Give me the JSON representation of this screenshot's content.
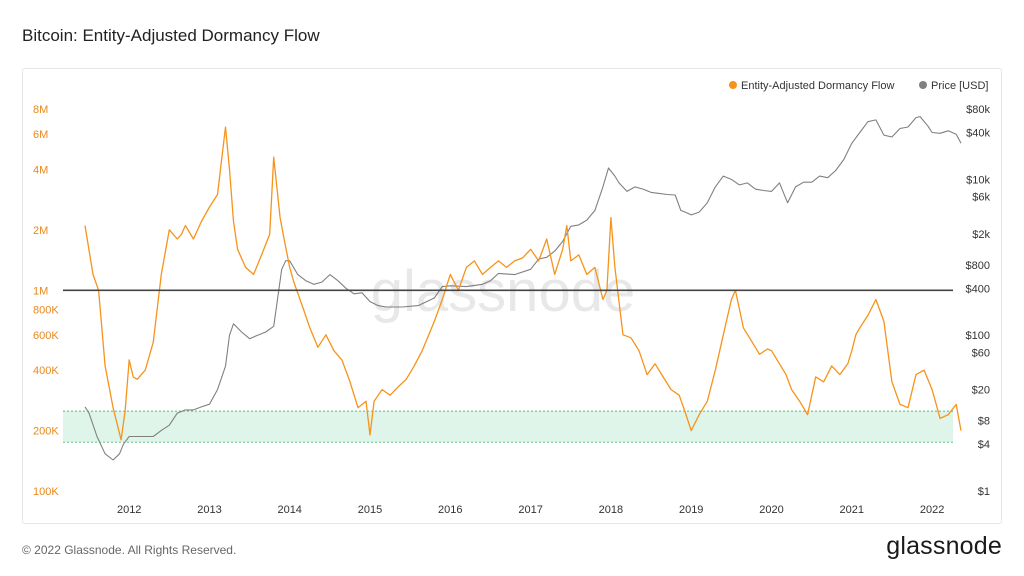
{
  "title": "Bitcoin: Entity-Adjusted Dormancy Flow",
  "footer": "© 2022 Glassnode. All Rights Reserved.",
  "brand": "glassnode",
  "watermark": "glassnode",
  "colors": {
    "dormancy": "#f7931a",
    "price": "#808080",
    "band_fill": "#dff5ea",
    "band_line": "#47c27f",
    "reference_line": "#444444",
    "left_axis_text": "#e8891c",
    "right_axis_text": "#333333"
  },
  "chart_data": {
    "type": "line",
    "legend": {
      "position": "top-right",
      "entries": [
        "Entity-Adjusted Dormancy Flow",
        "Price [USD]"
      ]
    },
    "x_ticks": [
      "2012",
      "2013",
      "2014",
      "2015",
      "2016",
      "2017",
      "2018",
      "2019",
      "2020",
      "2021",
      "2022"
    ],
    "x_range": [
      2011.45,
      2022.36
    ],
    "y_left": {
      "scale": "log",
      "range": [
        100000,
        8000000
      ],
      "ticks": [
        {
          "value": 100000,
          "label": "100K"
        },
        {
          "value": 200000,
          "label": "200K"
        },
        {
          "value": 400000,
          "label": "400K"
        },
        {
          "value": 600000,
          "label": "600K"
        },
        {
          "value": 800000,
          "label": "800K"
        },
        {
          "value": 1000000,
          "label": "1M"
        },
        {
          "value": 2000000,
          "label": "2M"
        },
        {
          "value": 4000000,
          "label": "4M"
        },
        {
          "value": 6000000,
          "label": "6M"
        },
        {
          "value": 8000000,
          "label": "8M"
        }
      ]
    },
    "y_right": {
      "scale": "log",
      "range": [
        1,
        80000
      ],
      "ticks": [
        {
          "value": 1,
          "label": "$1"
        },
        {
          "value": 4,
          "label": "$4"
        },
        {
          "value": 8,
          "label": "$8"
        },
        {
          "value": 20,
          "label": "$20"
        },
        {
          "value": 60,
          "label": "$60"
        },
        {
          "value": 100,
          "label": "$100"
        },
        {
          "value": 400,
          "label": "$400"
        },
        {
          "value": 800,
          "label": "$800"
        },
        {
          "value": 2000,
          "label": "$2k"
        },
        {
          "value": 6000,
          "label": "$6k"
        },
        {
          "value": 10000,
          "label": "$10k"
        },
        {
          "value": 40000,
          "label": "$40k"
        },
        {
          "value": 80000,
          "label": "$80k"
        }
      ]
    },
    "reference_line": 1000000,
    "band": [
      175000,
      250000
    ],
    "series": [
      {
        "name": "Entity-Adjusted Dormancy Flow",
        "axis": "left",
        "x": [
          2011.45,
          2011.55,
          2011.62,
          2011.7,
          2011.8,
          2011.9,
          2011.95,
          2012.0,
          2012.05,
          2012.1,
          2012.2,
          2012.3,
          2012.4,
          2012.5,
          2012.6,
          2012.65,
          2012.7,
          2012.8,
          2012.9,
          2013.0,
          2013.1,
          2013.2,
          2013.25,
          2013.3,
          2013.35,
          2013.45,
          2013.55,
          2013.65,
          2013.75,
          2013.8,
          2013.88,
          2013.93,
          2014.0,
          2014.05,
          2014.15,
          2014.25,
          2014.35,
          2014.45,
          2014.55,
          2014.65,
          2014.75,
          2014.85,
          2014.95,
          2015.0,
          2015.05,
          2015.15,
          2015.25,
          2015.35,
          2015.45,
          2015.55,
          2015.65,
          2015.8,
          2015.9,
          2016.0,
          2016.1,
          2016.2,
          2016.3,
          2016.4,
          2016.5,
          2016.6,
          2016.7,
          2016.8,
          2016.9,
          2017.0,
          2017.1,
          2017.2,
          2017.3,
          2017.4,
          2017.45,
          2017.5,
          2017.6,
          2017.7,
          2017.8,
          2017.9,
          2017.95,
          2018.0,
          2018.05,
          2018.15,
          2018.25,
          2018.35,
          2018.45,
          2018.55,
          2018.65,
          2018.75,
          2018.85,
          2018.92,
          2019.0,
          2019.1,
          2019.2,
          2019.3,
          2019.4,
          2019.5,
          2019.55,
          2019.65,
          2019.75,
          2019.85,
          2019.95,
          2020.0,
          2020.1,
          2020.18,
          2020.25,
          2020.35,
          2020.45,
          2020.55,
          2020.65,
          2020.75,
          2020.85,
          2020.95,
          2021.0,
          2021.05,
          2021.1,
          2021.2,
          2021.3,
          2021.4,
          2021.5,
          2021.6,
          2021.7,
          2021.8,
          2021.9,
          2022.0,
          2022.1,
          2022.2,
          2022.3,
          2022.36
        ],
        "y": [
          2100000,
          1200000,
          1000000,
          420000,
          260000,
          180000,
          250000,
          450000,
          370000,
          360000,
          400000,
          550000,
          1200000,
          2000000,
          1800000,
          1900000,
          2100000,
          1800000,
          2200000,
          2600000,
          3000000,
          6500000,
          4000000,
          2200000,
          1600000,
          1300000,
          1200000,
          1500000,
          1900000,
          4600000,
          2300000,
          1800000,
          1300000,
          1100000,
          850000,
          650000,
          520000,
          600000,
          500000,
          450000,
          350000,
          260000,
          280000,
          190000,
          280000,
          320000,
          300000,
          330000,
          360000,
          420000,
          500000,
          700000,
          900000,
          1200000,
          1000000,
          1300000,
          1400000,
          1200000,
          1300000,
          1400000,
          1300000,
          1400000,
          1450000,
          1600000,
          1400000,
          1800000,
          1200000,
          1600000,
          2100000,
          1400000,
          1500000,
          1200000,
          1300000,
          900000,
          1000000,
          2300000,
          1300000,
          600000,
          580000,
          500000,
          380000,
          430000,
          370000,
          320000,
          300000,
          250000,
          200000,
          240000,
          280000,
          400000,
          600000,
          900000,
          1000000,
          650000,
          560000,
          480000,
          510000,
          500000,
          430000,
          380000,
          320000,
          280000,
          240000,
          370000,
          350000,
          420000,
          380000,
          430000,
          500000,
          600000,
          650000,
          750000,
          900000,
          700000,
          350000,
          270000,
          260000,
          380000,
          400000,
          320000,
          230000,
          240000,
          270000,
          200000
        ],
        "style": {
          "color": "#f7931a",
          "stroke_width": 1.3
        }
      },
      {
        "name": "Price [USD]",
        "axis": "right",
        "x": [
          2011.45,
          2011.5,
          2011.6,
          2011.7,
          2011.8,
          2011.88,
          2011.93,
          2012.0,
          2012.1,
          2012.2,
          2012.3,
          2012.4,
          2012.5,
          2012.6,
          2012.7,
          2012.8,
          2012.9,
          2013.0,
          2013.1,
          2013.2,
          2013.25,
          2013.3,
          2013.4,
          2013.5,
          2013.6,
          2013.7,
          2013.8,
          2013.9,
          2013.95,
          2014.0,
          2014.1,
          2014.2,
          2014.3,
          2014.4,
          2014.5,
          2014.6,
          2014.7,
          2014.8,
          2014.9,
          2015.0,
          2015.1,
          2015.2,
          2015.4,
          2015.6,
          2015.8,
          2015.9,
          2016.0,
          2016.2,
          2016.4,
          2016.5,
          2016.6,
          2016.8,
          2017.0,
          2017.1,
          2017.2,
          2017.3,
          2017.4,
          2017.5,
          2017.6,
          2017.7,
          2017.8,
          2017.9,
          2017.97,
          2018.05,
          2018.1,
          2018.2,
          2018.3,
          2018.4,
          2018.5,
          2018.6,
          2018.7,
          2018.8,
          2018.87,
          2018.95,
          2019.0,
          2019.1,
          2019.2,
          2019.3,
          2019.4,
          2019.5,
          2019.6,
          2019.7,
          2019.8,
          2019.9,
          2020.0,
          2020.1,
          2020.2,
          2020.3,
          2020.4,
          2020.5,
          2020.6,
          2020.7,
          2020.8,
          2020.9,
          2021.0,
          2021.1,
          2021.2,
          2021.3,
          2021.4,
          2021.5,
          2021.6,
          2021.7,
          2021.8,
          2021.85,
          2021.95,
          2022.0,
          2022.1,
          2022.2,
          2022.3,
          2022.36
        ],
        "y": [
          12,
          10,
          5,
          3,
          2.5,
          3,
          4,
          5,
          5,
          5,
          5,
          6,
          7,
          10,
          11,
          11,
          12,
          13,
          20,
          40,
          100,
          140,
          110,
          90,
          100,
          110,
          130,
          700,
          900,
          900,
          600,
          500,
          450,
          480,
          600,
          500,
          400,
          340,
          350,
          270,
          240,
          230,
          230,
          240,
          300,
          420,
          430,
          420,
          450,
          500,
          620,
          600,
          700,
          950,
          1000,
          1200,
          1600,
          2500,
          2600,
          3000,
          4000,
          8000,
          14000,
          11000,
          9000,
          7000,
          8000,
          7500,
          6800,
          6600,
          6400,
          6300,
          4000,
          3700,
          3500,
          3800,
          5000,
          8000,
          11000,
          10000,
          8500,
          9000,
          7500,
          7200,
          7000,
          9000,
          5000,
          8000,
          9200,
          9200,
          11000,
          10500,
          13000,
          18000,
          29000,
          40000,
          55000,
          58000,
          37000,
          35000,
          45000,
          47000,
          62000,
          64000,
          48000,
          40000,
          39000,
          42000,
          38000,
          29000
        ],
        "style": {
          "color": "#808080",
          "stroke_width": 1.1
        }
      }
    ]
  }
}
